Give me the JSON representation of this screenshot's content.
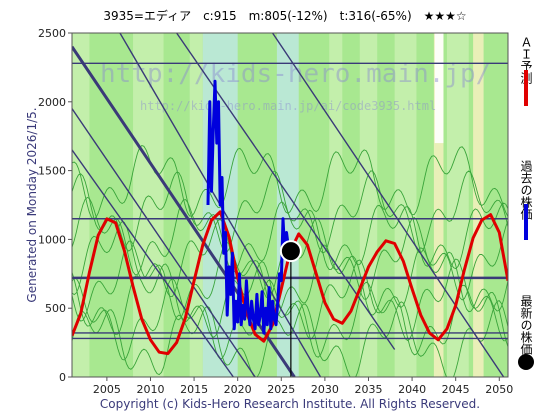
{
  "header": {
    "title": "3935=エディア　c:915　m:805(-12%)　t:316(-65%)　★★★☆"
  },
  "side_label": "Generated on Monday 2026/1/5.",
  "copyright": "Copyright (c) Kids-Hero Research Institute. All Rights Reserved.",
  "watermark": "http://kids-hero.main.jp/",
  "watermark_small": "http://kids-hero.main.jp/ai/code3935.html",
  "legend": [
    {
      "label": "ＡＩ予測",
      "color": "#e00000",
      "kind": "line"
    },
    {
      "label": "過去の株価",
      "color": "#0000dd",
      "kind": "line"
    },
    {
      "label": "最新の株価",
      "color": "#000000",
      "kind": "dot"
    }
  ],
  "colors": {
    "background_green": "#a8e890",
    "band_green": "#c8f0b0",
    "light_blue": "#bde8e0",
    "cream": "#f4f0c0",
    "thin_green": "#3aa43a",
    "trend_navy": "#3a3a78",
    "prediction": "#e00000",
    "history": "#0000dd",
    "marker": "#000000"
  },
  "chart_data": {
    "type": "line",
    "xlim": [
      2001,
      2051
    ],
    "ylim": [
      0,
      2500
    ],
    "x_ticks": [
      2005,
      2010,
      2015,
      2020,
      2025,
      2030,
      2035,
      2040,
      2045,
      2050
    ],
    "y_ticks": [
      0,
      500,
      1000,
      1500,
      2000,
      2500
    ],
    "grid": false,
    "legend_position": "right",
    "series": [
      {
        "name": "ＡＩ予測",
        "x": [
          2001,
          2002,
          2003,
          2004,
          2005,
          2006,
          2007,
          2008,
          2009,
          2010,
          2011,
          2012,
          2013,
          2014,
          2015,
          2016,
          2017,
          2018,
          2019,
          2020,
          2021,
          2022,
          2023,
          2024,
          2025,
          2026,
          2027,
          2028,
          2029,
          2030,
          2031,
          2032,
          2033,
          2034,
          2035,
          2036,
          2037,
          2038,
          2039,
          2040,
          2041,
          2042,
          2043,
          2044,
          2045,
          2046,
          2047,
          2048,
          2049,
          2050,
          2051
        ],
        "y": [
          300,
          460,
          760,
          1030,
          1150,
          1120,
          920,
          660,
          420,
          270,
          180,
          170,
          250,
          430,
          700,
          960,
          1140,
          1200,
          1020,
          720,
          470,
          310,
          260,
          380,
          640,
          910,
          1040,
          960,
          750,
          540,
          420,
          390,
          480,
          640,
          800,
          910,
          990,
          970,
          840,
          640,
          450,
          320,
          270,
          350,
          520,
          780,
          1010,
          1140,
          1180,
          1050,
          700
        ]
      },
      {
        "name": "過去の株価",
        "x": [
          2016.6,
          2016.8,
          2017.0,
          2017.2,
          2017.4,
          2017.6,
          2017.8,
          2018.0,
          2018.2,
          2018.4,
          2018.6,
          2018.8,
          2019.0,
          2019.2,
          2019.4,
          2019.6,
          2019.8,
          2020.0,
          2020.2,
          2020.4,
          2020.6,
          2020.8,
          2021.0,
          2021.2,
          2021.4,
          2021.6,
          2021.8,
          2022.0,
          2022.2,
          2022.4,
          2022.6,
          2022.8,
          2023.0,
          2023.2,
          2023.4,
          2023.6,
          2023.8,
          2024.0,
          2024.2,
          2024.4,
          2024.6,
          2024.8,
          2025.0,
          2025.2,
          2025.4,
          2025.6,
          2025.8,
          2026.0
        ],
        "y": [
          1250,
          2000,
          1350,
          1800,
          2150,
          1700,
          2000,
          1250,
          1450,
          900,
          1050,
          450,
          800,
          600,
          900,
          350,
          550,
          400,
          750,
          380,
          520,
          420,
          700,
          500,
          380,
          550,
          420,
          350,
          600,
          380,
          450,
          620,
          320,
          500,
          380,
          650,
          350,
          550,
          420,
          380,
          550,
          750,
          700,
          1150,
          900,
          1050,
          950,
          915
        ]
      }
    ],
    "latest": {
      "name": "最新の株価",
      "x": 2026.1,
      "y": 915
    }
  }
}
